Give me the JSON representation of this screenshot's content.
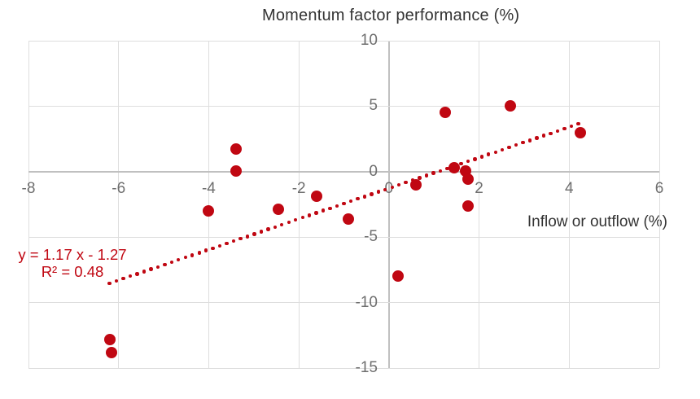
{
  "chart_data": {
    "type": "scatter",
    "title": "Momentum factor performance (%)",
    "xlabel": "Inflow or outflow (%)",
    "ylabel": "",
    "x_axis": {
      "min": -8,
      "max": 6,
      "step": 2,
      "ticks": [
        -8,
        -6,
        -4,
        -2,
        0,
        2,
        4,
        6
      ]
    },
    "y_axis": {
      "min": -15,
      "max": 10,
      "step": 5,
      "ticks": [
        10,
        5,
        0,
        -5,
        -10,
        -15
      ]
    },
    "grid": true,
    "legend_position": "none",
    "points": [
      [
        -6.2,
        -12.8
      ],
      [
        -6.15,
        -13.8
      ],
      [
        -4.0,
        -3.0
      ],
      [
        -3.4,
        1.75
      ],
      [
        -3.4,
        0.05
      ],
      [
        -2.45,
        -2.9
      ],
      [
        -1.6,
        -1.9
      ],
      [
        -0.9,
        -3.6
      ],
      [
        0.2,
        -8.0
      ],
      [
        0.6,
        -1.0
      ],
      [
        1.25,
        4.5
      ],
      [
        1.45,
        0.3
      ],
      [
        1.7,
        0.05
      ],
      [
        1.75,
        -0.55
      ],
      [
        1.75,
        -2.65
      ],
      [
        2.7,
        5.0
      ],
      [
        4.25,
        3.0
      ]
    ],
    "trendline": {
      "style": "dotted",
      "slope": 1.17,
      "intercept": -1.27,
      "x_start": -6.2,
      "x_end": 4.2,
      "equation_label": "y = 1.17 x - 1.27",
      "r_squared_label": "R² = 0.48"
    },
    "colors": {
      "point": "#c00712",
      "trend": "#c00712",
      "annotation": "#c00712",
      "gridline": "#dedede",
      "axis_line": "#c0c0c0",
      "tick_label": "#6e6e6e",
      "title_text": "#333333"
    }
  }
}
